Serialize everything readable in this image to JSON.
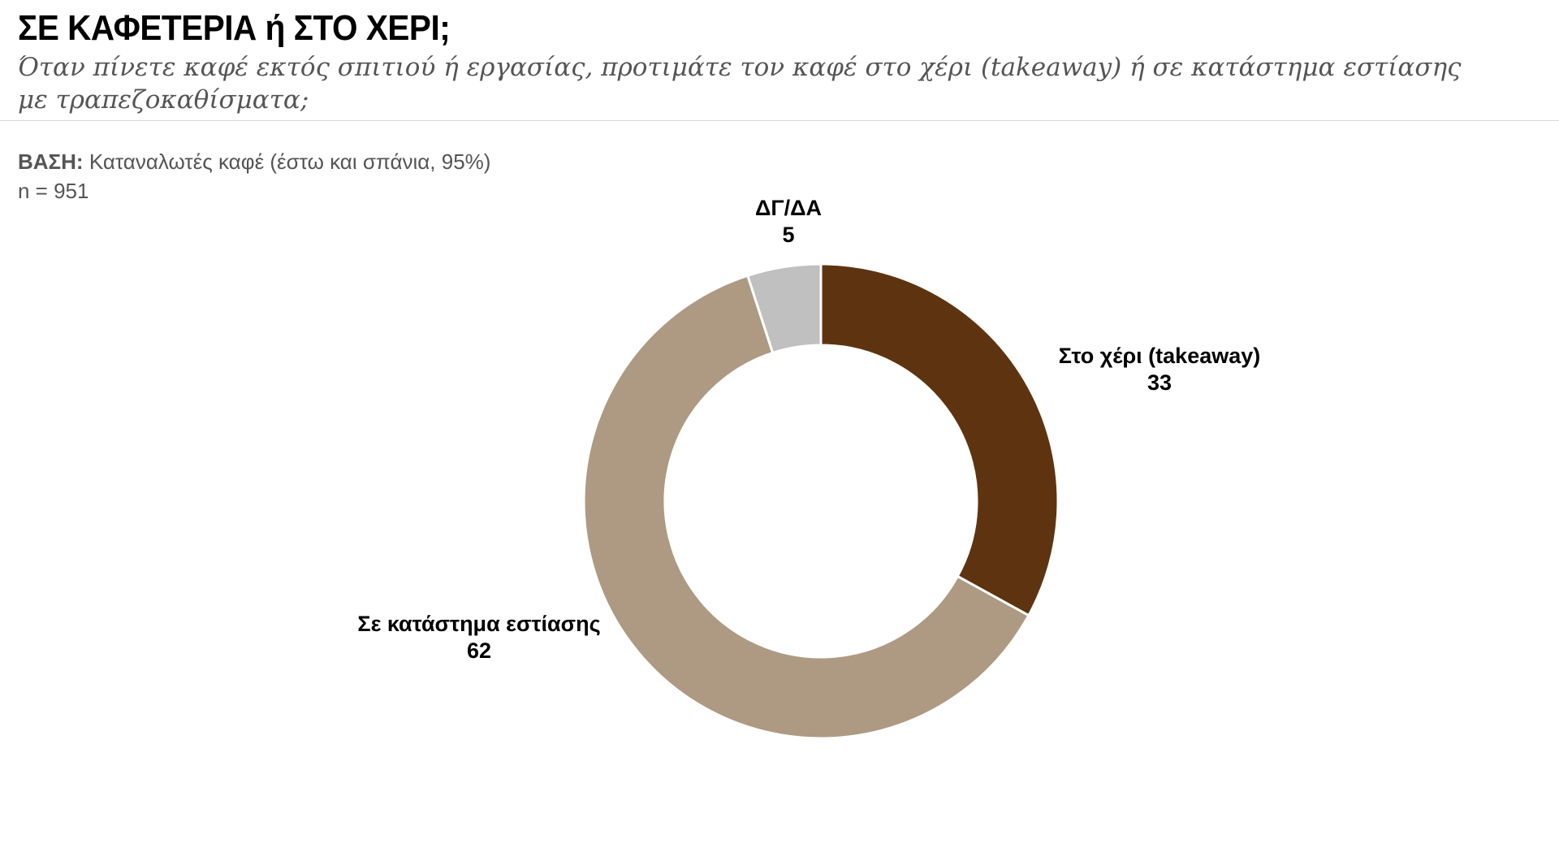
{
  "header": {
    "title": "ΣΕ ΚΑΦΕΤΕΡΙΑ ή ΣΤΟ ΧΕΡΙ;",
    "subtitle": "Όταν πίνετε καφέ εκτός σπιτιού ή εργασίας, προτιμάτε τον καφέ στο χέρι (takeaway) ή σε κατάστημα εστίασης με τραπεζοκαθίσματα;"
  },
  "base": {
    "label": "ΒΑΣΗ:",
    "text": "Καταναλωτές καφέ (έστω και σπάνια, 95%)",
    "n": "n = 951"
  },
  "chart_data": {
    "type": "pie",
    "variant": "donut",
    "start_angle_deg": 0,
    "direction": "clockwise",
    "slices": [
      {
        "name": "Στο χέρι (takeaway)",
        "value": 33,
        "value_label": "33",
        "color": "#5e3410"
      },
      {
        "name": "Σε κατάστημα εστίασης",
        "value": 62,
        "value_label": "62",
        "color": "#ae9a82"
      },
      {
        "name": "ΔΓ/ΔΑ",
        "value": 5,
        "value_label": "5",
        "color": "#c0c0c0"
      }
    ],
    "legend": "none",
    "labels": "outside"
  }
}
